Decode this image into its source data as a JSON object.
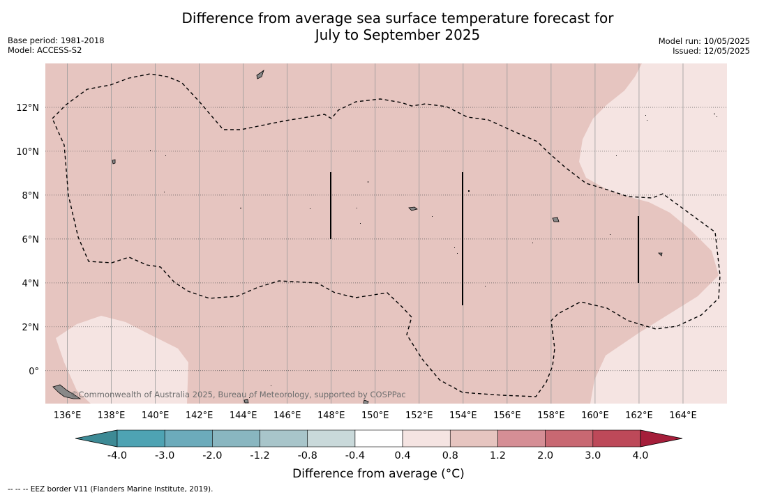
{
  "header": {
    "title_line1": "Difference from average sea surface temperature forecast for",
    "title_line2": "July to September 2025",
    "base_period": "Base period: 1981-2018",
    "model": "Model: ACCESS-S2",
    "model_run": "Model run: 10/05/2025",
    "issued": "Issued: 12/05/2025"
  },
  "map": {
    "lon_ticks": [
      "136°E",
      "138°E",
      "140°E",
      "142°E",
      "144°E",
      "146°E",
      "148°E",
      "150°E",
      "152°E",
      "154°E",
      "156°E",
      "158°E",
      "160°E",
      "162°E",
      "164°E"
    ],
    "lat_ticks": [
      "12°N",
      "10°N",
      "8°N",
      "6°N",
      "4°N",
      "2°N",
      "0°"
    ],
    "credit": "©Commonwealth of Australia 2025, Bureau of Meteorology, supported by COSPPac",
    "extent": {
      "lon": [
        135,
        166
      ],
      "lat": [
        -1.5,
        14
      ]
    }
  },
  "colorbar": {
    "title": "Difference from average (°C)",
    "tick_labels": [
      "-4.0",
      "-3.0",
      "-2.0",
      "-1.2",
      "-0.8",
      "-0.4",
      "0.4",
      "0.8",
      "1.2",
      "2.0",
      "3.0",
      "4.0"
    ],
    "colors": [
      "#3d8a95",
      "#4ea3b3",
      "#6cabbb",
      "#89b6c0",
      "#a8c5ca",
      "#c9d9da",
      "#ffffff",
      "#f5e4e2",
      "#e6c5c0",
      "#d58e95",
      "#c86872",
      "#bd4959",
      "#a51e3a"
    ]
  },
  "footer": {
    "legend": "--  --  -- EEZ border V11 (Flanders Marine Institute, 2019)."
  }
}
